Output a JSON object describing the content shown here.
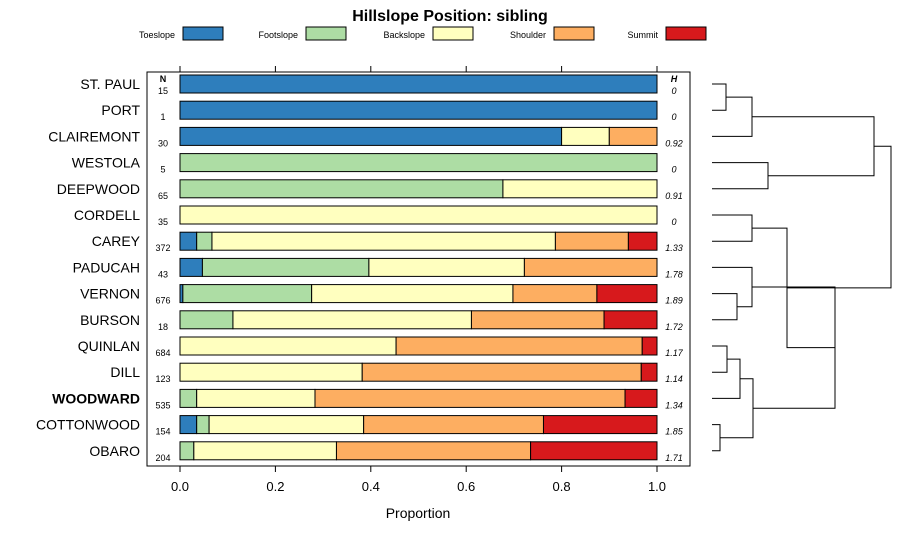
{
  "chart_data": {
    "type": "bar",
    "orientation": "horizontal",
    "stacked": true,
    "title": "Hillslope Position: sibling",
    "xlabel": "Proportion",
    "xlim": [
      0,
      1
    ],
    "xticks": [
      "0.0",
      "0.2",
      "0.4",
      "0.6",
      "0.8",
      "1.0"
    ],
    "n_header": "N",
    "h_header": "H",
    "legend": [
      {
        "name": "Toeslope",
        "color": "#2E7EBC"
      },
      {
        "name": "Footslope",
        "color": "#ADDDA4"
      },
      {
        "name": "Backslope",
        "color": "#FFFFBF"
      },
      {
        "name": "Shoulder",
        "color": "#FDAE61"
      },
      {
        "name": "Summit",
        "color": "#D7191C"
      }
    ],
    "rows": [
      {
        "label": "ST. PAUL",
        "bold": false,
        "n": "15",
        "h": "0",
        "values": [
          1.0,
          0,
          0,
          0,
          0
        ]
      },
      {
        "label": "PORT",
        "bold": false,
        "n": "1",
        "h": "0",
        "values": [
          1.0,
          0,
          0,
          0,
          0
        ]
      },
      {
        "label": "CLAIREMONT",
        "bold": false,
        "n": "30",
        "h": "0.92",
        "values": [
          0.8,
          0,
          0.1,
          0.1,
          0
        ]
      },
      {
        "label": "WESTOLA",
        "bold": false,
        "n": "5",
        "h": "0",
        "values": [
          0,
          1.0,
          0,
          0,
          0
        ]
      },
      {
        "label": "DEEPWOOD",
        "bold": false,
        "n": "65",
        "h": "0.91",
        "values": [
          0,
          0.677,
          0.323,
          0,
          0
        ]
      },
      {
        "label": "CORDELL",
        "bold": false,
        "n": "35",
        "h": "0",
        "values": [
          0,
          0,
          1.0,
          0,
          0
        ]
      },
      {
        "label": "CAREY",
        "bold": false,
        "n": "372",
        "h": "1.33",
        "values": [
          0.035,
          0.032,
          0.72,
          0.153,
          0.06
        ]
      },
      {
        "label": "PADUCAH",
        "bold": false,
        "n": "43",
        "h": "1.78",
        "values": [
          0.047,
          0.349,
          0.326,
          0.278,
          0
        ]
      },
      {
        "label": "VERNON",
        "bold": false,
        "n": "676",
        "h": "1.89",
        "values": [
          0.006,
          0.27,
          0.422,
          0.176,
          0.126
        ]
      },
      {
        "label": "BURSON",
        "bold": false,
        "n": "18",
        "h": "1.72",
        "values": [
          0,
          0.111,
          0.5,
          0.278,
          0.111
        ]
      },
      {
        "label": "QUINLAN",
        "bold": false,
        "n": "684",
        "h": "1.17",
        "values": [
          0,
          0,
          0.453,
          0.516,
          0.031
        ]
      },
      {
        "label": "DILL",
        "bold": false,
        "n": "123",
        "h": "1.14",
        "values": [
          0,
          0,
          0.382,
          0.585,
          0.033
        ]
      },
      {
        "label": "WOODWARD",
        "bold": true,
        "n": "535",
        "h": "1.34",
        "values": [
          0,
          0.035,
          0.248,
          0.65,
          0.067
        ]
      },
      {
        "label": "COTTONWOOD",
        "bold": false,
        "n": "154",
        "h": "1.85",
        "values": [
          0.035,
          0.026,
          0.324,
          0.377,
          0.238
        ]
      },
      {
        "label": "OBARO",
        "bold": false,
        "n": "204",
        "h": "1.71",
        "values": [
          0,
          0.029,
          0.299,
          0.407,
          0.265
        ]
      }
    ]
  }
}
